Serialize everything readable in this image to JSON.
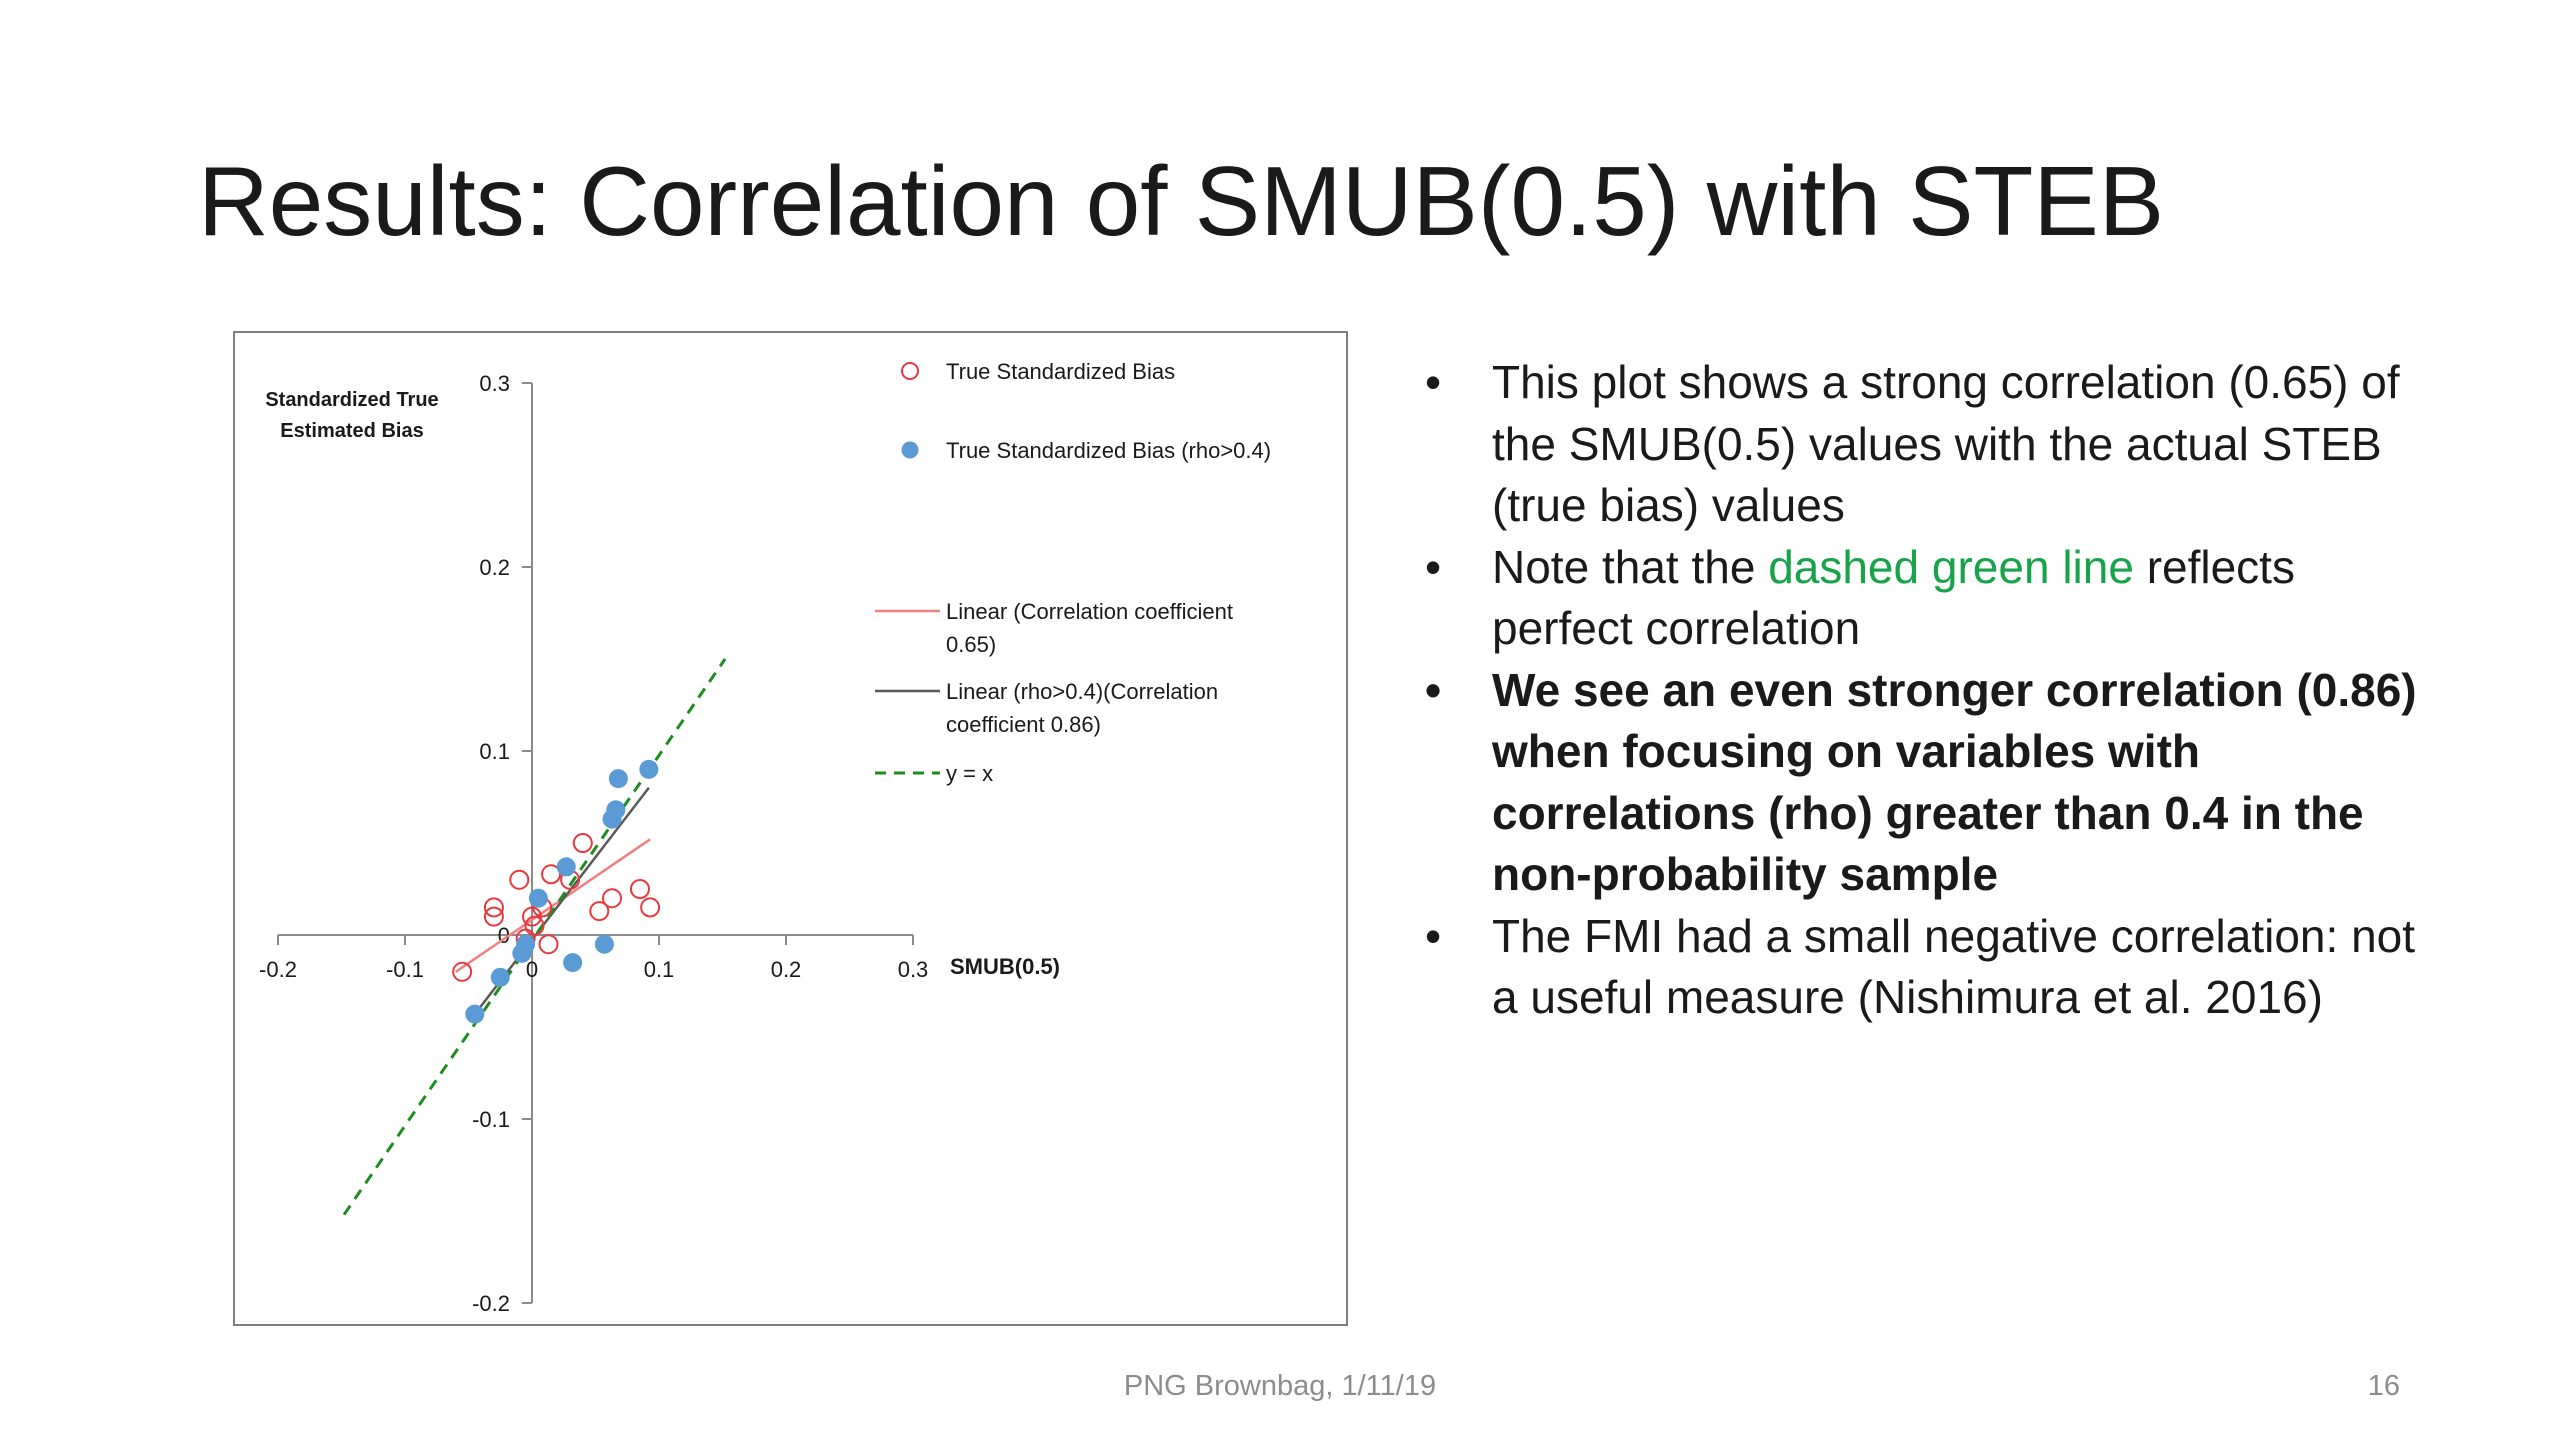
{
  "slide": {
    "title": "Results: Correlation of SMUB(0.5) with STEB",
    "footer": "PNG Brownbag, 1/11/19",
    "page_number": "16"
  },
  "bullets": [
    {
      "text": "This plot shows a strong correlation (0.65) of the SMUB(0.5) values with the actual STEB (true bias) values",
      "bold": false
    },
    {
      "before": "Note that the ",
      "highlight": "dashed green line",
      "after": " reflects perfect correlation",
      "highlight_color": "#17a34a",
      "bold": false
    },
    {
      "text": "We see an even stronger correlation (0.86) when focusing on variables with correlations (rho) greater than 0.4 in the non-probability sample",
      "bold": true
    },
    {
      "text": "The FMI had a small negative correlation: not a useful measure (Nishimura et al. 2016)",
      "bold": false
    }
  ],
  "chart_data": {
    "type": "scatter",
    "xlabel": "SMUB(0.5)",
    "ylabel": "Standardized True Estimated Bias",
    "xlim": [
      -0.2,
      0.3
    ],
    "ylim": [
      -0.2,
      0.3
    ],
    "x_ticks": [
      "-0.2",
      "-0.1",
      "0",
      "0.1",
      "0.2",
      "0.3"
    ],
    "y_ticks": [
      "0.3",
      "0.2",
      "0.1",
      "0",
      "-0.1",
      "-0.2"
    ],
    "legend_position": "right",
    "series": [
      {
        "name": "True Standardized Bias",
        "marker": "open-circle",
        "color": "#e8393f",
        "points": [
          [
            -0.055,
            -0.02
          ],
          [
            -0.03,
            0.01
          ],
          [
            -0.03,
            0.015
          ],
          [
            -0.01,
            0.03
          ],
          [
            -0.005,
            -0.002
          ],
          [
            0,
            0.01
          ],
          [
            0.002,
            0.005
          ],
          [
            0.008,
            0.015
          ],
          [
            0.013,
            -0.005
          ],
          [
            0.015,
            0.033
          ],
          [
            0.03,
            0.03
          ],
          [
            0.04,
            0.05
          ],
          [
            0.053,
            0.013
          ],
          [
            0.063,
            0.02
          ],
          [
            0.085,
            0.025
          ],
          [
            0.093,
            0.015
          ]
        ]
      },
      {
        "name": "True Standardized Bias (rho>0.4)",
        "marker": "filled-circle",
        "color": "#5b9bd5",
        "points": [
          [
            -0.045,
            -0.043
          ],
          [
            -0.025,
            -0.023
          ],
          [
            -0.008,
            -0.01
          ],
          [
            -0.005,
            -0.005
          ],
          [
            0.005,
            0.02
          ],
          [
            0.027,
            0.037
          ],
          [
            0.032,
            -0.015
          ],
          [
            0.057,
            -0.005
          ],
          [
            0.063,
            0.063
          ],
          [
            0.066,
            0.068
          ],
          [
            0.068,
            0.085
          ],
          [
            0.092,
            0.09
          ]
        ]
      }
    ],
    "lines": [
      {
        "name": "Linear (Correlation coefficient 0.65)",
        "color": "#f08080",
        "style": "solid",
        "from": [
          -0.06,
          -0.02
        ],
        "to": [
          0.093,
          0.052
        ]
      },
      {
        "name": "Linear (rho>0.4)(Correlation coefficient 0.86)",
        "color": "#595959",
        "style": "solid",
        "from": [
          -0.045,
          -0.043
        ],
        "to": [
          0.092,
          0.08
        ]
      },
      {
        "name": "y = x",
        "color": "#1e8c1e",
        "style": "dashed",
        "from": [
          -0.148,
          -0.152
        ],
        "to": [
          0.152,
          0.15
        ]
      }
    ],
    "legend": [
      {
        "label": "True Standardized Bias",
        "marker": "open-circle",
        "color": "#e8393f"
      },
      {
        "label": "True Standardized Bias (rho>0.4)",
        "marker": "filled-circle",
        "color": "#5b9bd5"
      },
      {
        "label": "Linear (Correlation coefficient 0.65)",
        "marker": "line",
        "color": "#f08080"
      },
      {
        "label": "Linear (rho>0.4)(Correlation coefficient 0.86)",
        "marker": "line",
        "color": "#595959"
      },
      {
        "label": "y = x",
        "marker": "dashed-line",
        "color": "#1e8c1e"
      }
    ]
  }
}
